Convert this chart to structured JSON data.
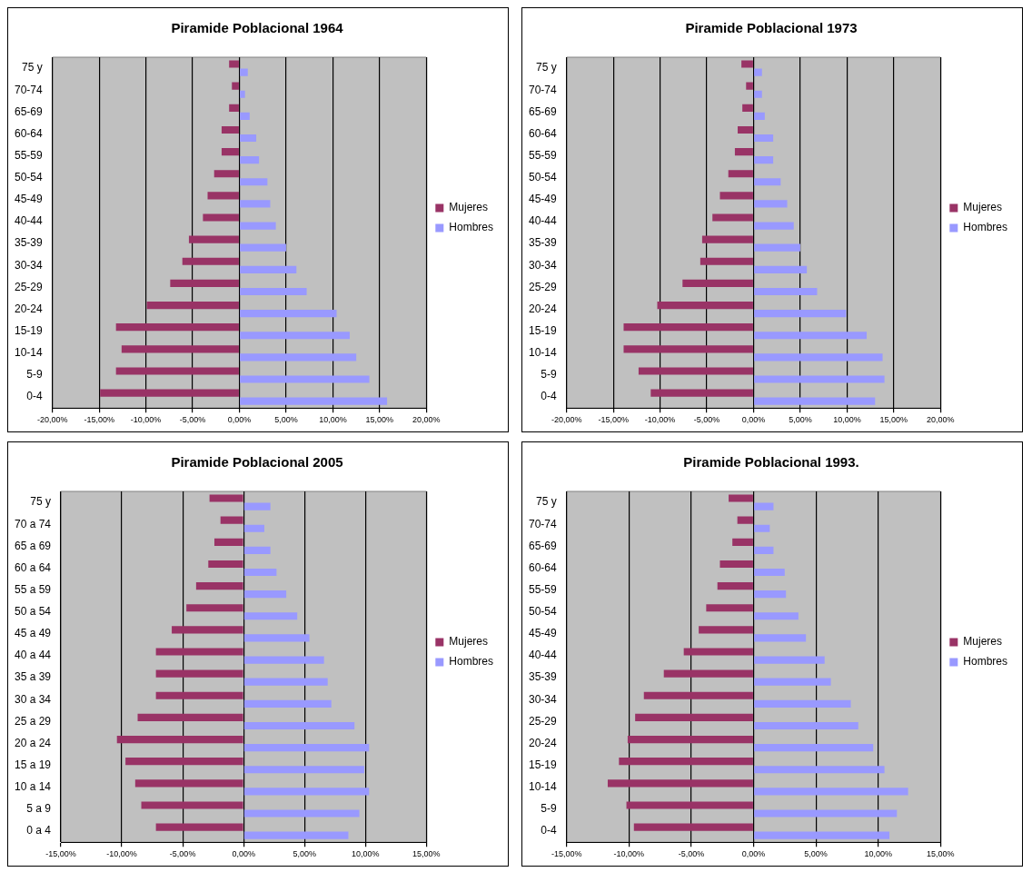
{
  "chart_data": [
    {
      "type": "bar",
      "orientation": "horizontal",
      "title": "Piramide Poblacional 1964",
      "categories": [
        "75 y",
        "70-74",
        "65-69",
        "60-64",
        "55-59",
        "50-54",
        "45-49",
        "40-44",
        "35-39",
        "30-34",
        "25-29",
        "20-24",
        "15-19",
        "10-14",
        "5-9",
        "0-4"
      ],
      "series": [
        {
          "name": "Mujeres",
          "color": "#993366",
          "values": [
            -1.1,
            -0.8,
            -1.1,
            -1.9,
            -1.9,
            -2.7,
            -3.4,
            -3.9,
            -5.4,
            -6.1,
            -7.4,
            -9.9,
            -13.2,
            -12.6,
            -13.2,
            -14.9
          ]
        },
        {
          "name": "Hombres",
          "color": "#9999ff",
          "values": [
            0.9,
            0.6,
            1.1,
            1.8,
            2.1,
            3.0,
            3.3,
            3.9,
            5.0,
            6.1,
            7.2,
            10.4,
            11.8,
            12.5,
            13.9,
            15.8
          ]
        }
      ],
      "xlim": [
        -20,
        20
      ],
      "xticks": [
        {
          "value": -20,
          "label": "-20,00%"
        },
        {
          "value": -15,
          "label": "-15,00%"
        },
        {
          "value": -10,
          "label": "-10,00%"
        },
        {
          "value": -5,
          "label": "-5,00%"
        },
        {
          "value": 0,
          "label": "0,00%"
        },
        {
          "value": 5,
          "label": "5,00%"
        },
        {
          "value": 10,
          "label": "10,00%"
        },
        {
          "value": 15,
          "label": "15,00%"
        },
        {
          "value": 20,
          "label": "20,00%"
        }
      ],
      "grid": "x",
      "legend": "right"
    },
    {
      "type": "bar",
      "orientation": "horizontal",
      "title": "Piramide Poblacional 1973",
      "categories": [
        "75 y",
        "70-74",
        "65-69",
        "60-64",
        "55-59",
        "50-54",
        "45-49",
        "40-44",
        "35-39",
        "30-34",
        "25-29",
        "20-24",
        "15-19",
        "10-14",
        "5-9",
        "0-4"
      ],
      "series": [
        {
          "name": "Mujeres",
          "color": "#993366",
          "values": [
            -1.3,
            -0.8,
            -1.2,
            -1.7,
            -2.0,
            -2.7,
            -3.6,
            -4.4,
            -5.5,
            -5.7,
            -7.6,
            -10.3,
            -13.9,
            -13.9,
            -12.3,
            -11.0
          ]
        },
        {
          "name": "Hombres",
          "color": "#9999ff",
          "values": [
            0.9,
            0.9,
            1.2,
            2.1,
            2.1,
            2.9,
            3.6,
            4.3,
            5.0,
            5.7,
            6.8,
            9.9,
            12.1,
            13.8,
            14.0,
            13.0
          ]
        }
      ],
      "xlim": [
        -20,
        20
      ],
      "xticks": [
        {
          "value": -20,
          "label": "-20,00%"
        },
        {
          "value": -15,
          "label": "-15,00%"
        },
        {
          "value": -10,
          "label": "-10,00%"
        },
        {
          "value": -5,
          "label": "-5,00%"
        },
        {
          "value": 0,
          "label": "0,00%"
        },
        {
          "value": 5,
          "label": "5,00%"
        },
        {
          "value": 10,
          "label": "10,00%"
        },
        {
          "value": 15,
          "label": "15,00%"
        },
        {
          "value": 20,
          "label": "20,00%"
        }
      ],
      "grid": "x",
      "legend": "right"
    },
    {
      "type": "bar",
      "orientation": "horizontal",
      "title": "Piramide Poblacional 2005",
      "categories": [
        "75 y",
        "70 a 74",
        "65 a 69",
        "60 a 64",
        "55 a 59",
        "50 a 54",
        "45 a 49",
        "40 a 44",
        "35 a 39",
        "30 a 34",
        "25 a 29",
        "20 a 24",
        "15 a 19",
        "10 a 14",
        "5 a 9",
        "0 a 4"
      ],
      "series": [
        {
          "name": "Mujeres",
          "color": "#993366",
          "values": [
            -2.8,
            -1.9,
            -2.4,
            -2.9,
            -3.9,
            -4.7,
            -5.9,
            -7.2,
            -7.2,
            -7.2,
            -8.7,
            -10.4,
            -9.7,
            -8.9,
            -8.4,
            -7.2
          ]
        },
        {
          "name": "Hombres",
          "color": "#9999ff",
          "values": [
            2.2,
            1.7,
            2.2,
            2.7,
            3.5,
            4.4,
            5.4,
            6.6,
            6.9,
            7.2,
            9.1,
            10.3,
            9.9,
            10.3,
            9.5,
            8.6
          ]
        }
      ],
      "xlim": [
        -15,
        15
      ],
      "xticks": [
        {
          "value": -15,
          "label": "-15,00%"
        },
        {
          "value": -10,
          "label": "-10,00%"
        },
        {
          "value": -5,
          "label": "-5,00%"
        },
        {
          "value": 0,
          "label": "0,00%"
        },
        {
          "value": 5,
          "label": "5,00%"
        },
        {
          "value": 10,
          "label": "10,00%"
        },
        {
          "value": 15,
          "label": "15,00%"
        }
      ],
      "grid": "x",
      "legend": "right"
    },
    {
      "type": "bar",
      "orientation": "horizontal",
      "title": "Piramide Poblacional 1993.",
      "categories": [
        "75 y",
        "70-74",
        "65-69",
        "60-64",
        "55-59",
        "50-54",
        "45-49",
        "40-44",
        "35-39",
        "30-34",
        "25-29",
        "20-24",
        "15-19",
        "10-14",
        "5-9",
        "0-4"
      ],
      "series": [
        {
          "name": "Mujeres",
          "color": "#993366",
          "values": [
            -2.0,
            -1.3,
            -1.7,
            -2.7,
            -2.9,
            -3.8,
            -4.4,
            -5.6,
            -7.2,
            -8.8,
            -9.5,
            -10.1,
            -10.8,
            -11.7,
            -10.2,
            -9.6
          ]
        },
        {
          "name": "Hombres",
          "color": "#9999ff",
          "values": [
            1.6,
            1.3,
            1.6,
            2.5,
            2.6,
            3.6,
            4.2,
            5.7,
            6.2,
            7.8,
            8.4,
            9.6,
            10.5,
            12.4,
            11.5,
            10.9
          ]
        }
      ],
      "xlim": [
        -15,
        15
      ],
      "xticks": [
        {
          "value": -15,
          "label": "-15,00%"
        },
        {
          "value": -10,
          "label": "-10,00%"
        },
        {
          "value": -5,
          "label": "-5,00%"
        },
        {
          "value": 0,
          "label": "0,00%"
        },
        {
          "value": 5,
          "label": "5,00%"
        },
        {
          "value": 10,
          "label": "10,00%"
        },
        {
          "value": 15,
          "label": "15,00%"
        }
      ],
      "grid": "x",
      "legend": "right"
    }
  ]
}
